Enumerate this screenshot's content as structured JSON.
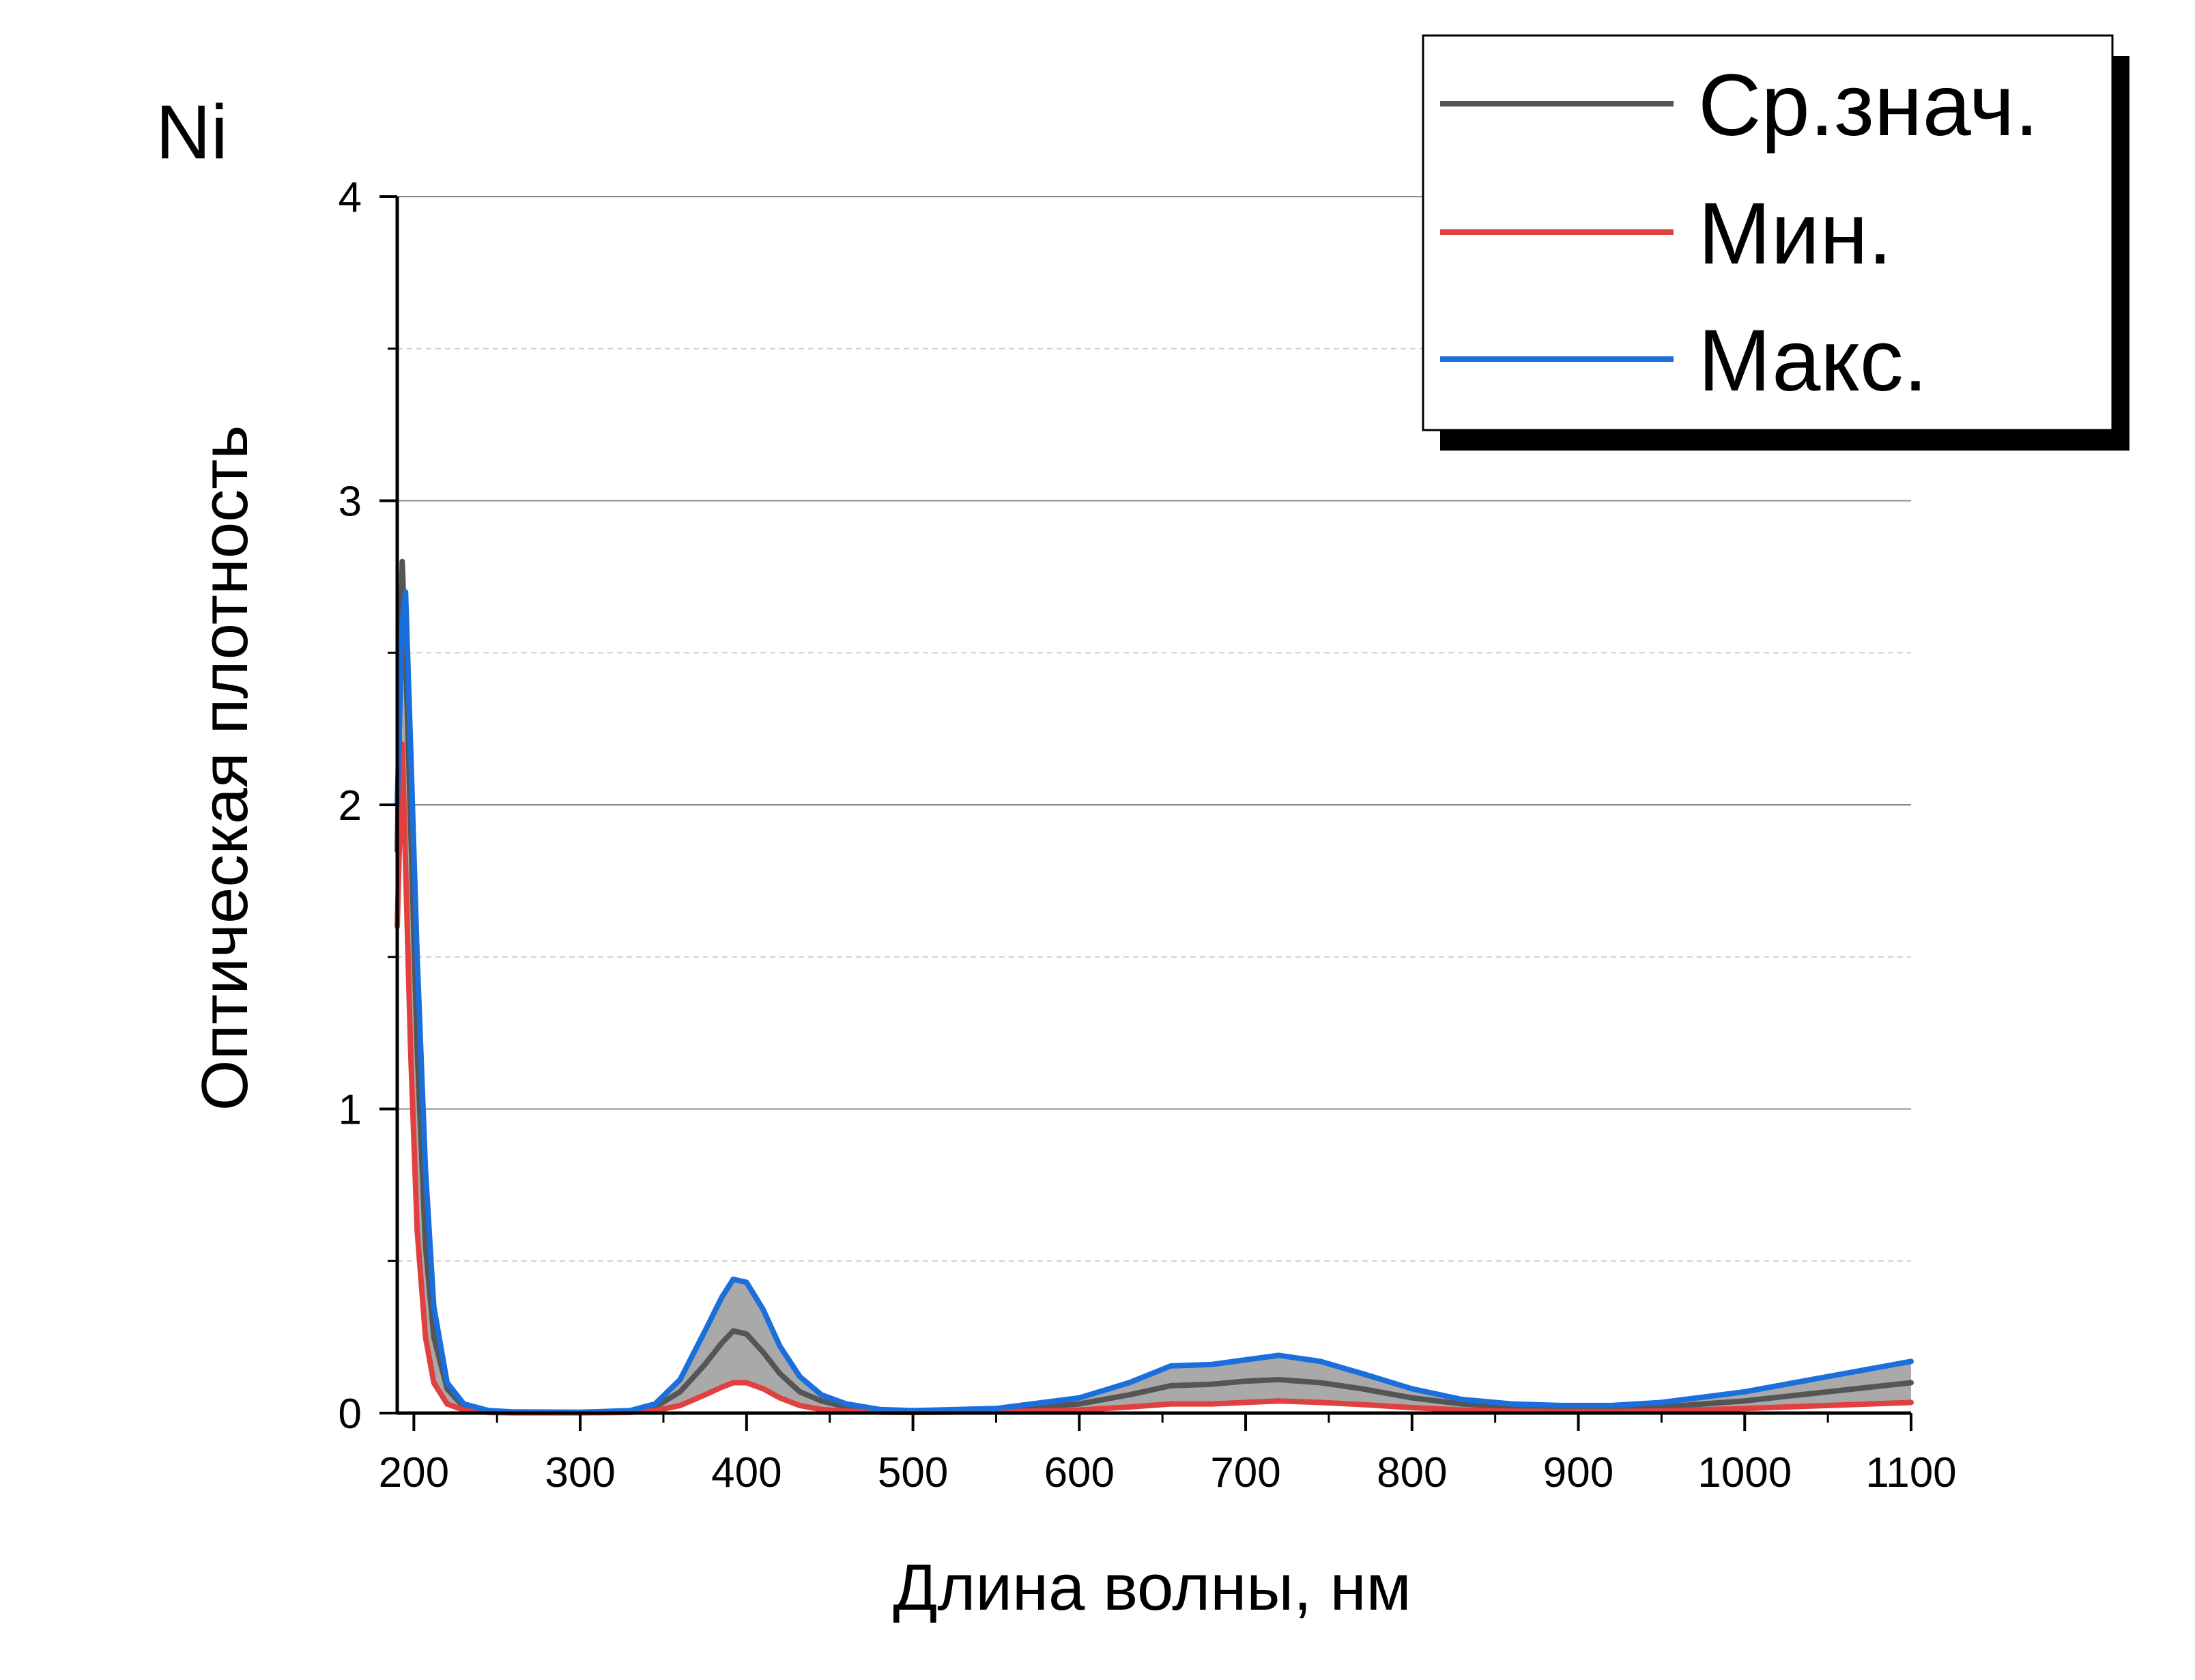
{
  "chart_data": {
    "type": "line",
    "panel_label": "Ni",
    "title": "",
    "xlabel": "Длина волны, нм",
    "ylabel": "Оптическая плотность",
    "xlim": [
      190,
      1100
    ],
    "ylim": [
      0,
      4
    ],
    "x_ticks": [
      200,
      300,
      400,
      500,
      600,
      700,
      800,
      900,
      1000,
      1100
    ],
    "y_ticks": [
      0,
      1,
      2,
      3,
      4
    ],
    "x_tick_labels": [
      "200",
      "300",
      "400",
      "500",
      "600",
      "700",
      "800",
      "900",
      "1000",
      "1100"
    ],
    "y_tick_labels": [
      "0",
      "1",
      "2",
      "3",
      "4"
    ],
    "grid": "horizontal major solid, minor dashed",
    "legend_position": "top-right",
    "shaded_band": "spread between Мин. and Макс. (grey)",
    "x": [
      190,
      193,
      195,
      198,
      202,
      207,
      212,
      220,
      230,
      245,
      260,
      300,
      330,
      345,
      360,
      375,
      385,
      392,
      400,
      410,
      420,
      432,
      445,
      460,
      480,
      500,
      550,
      600,
      630,
      655,
      680,
      700,
      720,
      745,
      770,
      800,
      830,
      860,
      890,
      920,
      950,
      1000,
      1050,
      1100
    ],
    "series": [
      {
        "name": "Ср.знач.",
        "color": "#555555",
        "values": [
          1.85,
          2.8,
          2.5,
          1.95,
          1.2,
          0.55,
          0.25,
          0.08,
          0.02,
          0.005,
          0.003,
          0.002,
          0.005,
          0.02,
          0.07,
          0.16,
          0.23,
          0.27,
          0.26,
          0.2,
          0.13,
          0.07,
          0.04,
          0.02,
          0.008,
          0.005,
          0.01,
          0.03,
          0.06,
          0.09,
          0.095,
          0.105,
          0.11,
          0.1,
          0.08,
          0.05,
          0.03,
          0.02,
          0.015,
          0.015,
          0.02,
          0.04,
          0.07,
          0.1
        ]
      },
      {
        "name": "Мин.",
        "color": "#e04040",
        "values": [
          1.6,
          2.2,
          1.8,
          1.2,
          0.6,
          0.25,
          0.1,
          0.03,
          0.01,
          0.002,
          0.001,
          0.001,
          0.002,
          0.008,
          0.025,
          0.06,
          0.085,
          0.1,
          0.1,
          0.08,
          0.05,
          0.025,
          0.012,
          0.006,
          0.003,
          0.002,
          0.004,
          0.01,
          0.02,
          0.03,
          0.03,
          0.035,
          0.04,
          0.035,
          0.028,
          0.018,
          0.01,
          0.006,
          0.005,
          0.005,
          0.007,
          0.015,
          0.025,
          0.035
        ]
      },
      {
        "name": "Макс.",
        "color": "#1a6fdc",
        "values": [
          2.0,
          2.6,
          2.7,
          2.2,
          1.5,
          0.8,
          0.35,
          0.1,
          0.03,
          0.008,
          0.004,
          0.003,
          0.008,
          0.03,
          0.11,
          0.27,
          0.38,
          0.44,
          0.43,
          0.34,
          0.22,
          0.12,
          0.06,
          0.03,
          0.012,
          0.008,
          0.015,
          0.05,
          0.1,
          0.155,
          0.16,
          0.175,
          0.19,
          0.17,
          0.13,
          0.08,
          0.045,
          0.03,
          0.025,
          0.025,
          0.035,
          0.07,
          0.12,
          0.17
        ]
      }
    ]
  }
}
